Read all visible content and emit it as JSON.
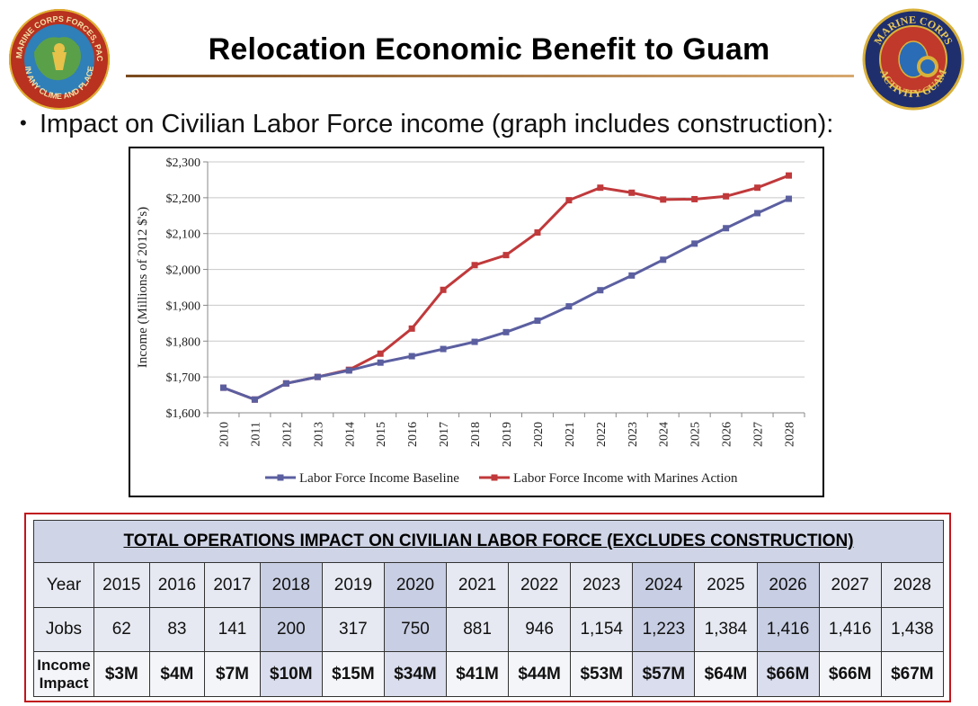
{
  "page": {
    "title": "Relocation Economic Benefit to Guam",
    "bullet": "Impact on Civilian Labor Force income (graph includes construction):"
  },
  "logos": {
    "left": {
      "icon": "usmc-forces-pacific-seal",
      "text_top": "U.S. MARINE CORPS FORCES, PACIFIC",
      "text_bottom": "IN ANY CLIME AND PLACE"
    },
    "right": {
      "icon": "marine-corps-activity-guam-seal",
      "text_top": "MARINE CORPS",
      "text_bottom": "ACTIVITY GUAM"
    }
  },
  "chart_data": {
    "type": "line",
    "title": "",
    "xlabel": "",
    "ylabel": "Income (Millions of  2012 $'s)",
    "x": [
      "2010",
      "2011",
      "2012",
      "2013",
      "2014",
      "2015",
      "2016",
      "2017",
      "2018",
      "2019",
      "2020",
      "2021",
      "2022",
      "2023",
      "2024",
      "2025",
      "2026",
      "2027",
      "2028"
    ],
    "ylim": [
      1600,
      2300
    ],
    "yticks": [
      1600,
      1700,
      1800,
      1900,
      2000,
      2100,
      2200,
      2300
    ],
    "ytick_labels": [
      "$1,600",
      "$1,700",
      "$1,800",
      "$1,900",
      "$2,000",
      "$2,100",
      "$2,200",
      "$2,300"
    ],
    "grid": "horizontal",
    "legend_position": "bottom",
    "series": [
      {
        "name": "Labor Force Income Baseline",
        "color": "#5b5fa0",
        "values": [
          1670,
          1637,
          1682,
          1700,
          1718,
          1740,
          1758,
          1778,
          1798,
          1825,
          1857,
          1897,
          1942,
          1983,
          2027,
          2072,
          2115,
          2157,
          2197
        ]
      },
      {
        "name": "Labor Force Income with Marines Action",
        "color": "#c0393b",
        "values": [
          1670,
          1637,
          1682,
          1700,
          1720,
          1765,
          1835,
          1943,
          2012,
          2040,
          2103,
          2193,
          2228,
          2214,
          2195,
          2196,
          2204,
          2228,
          2262
        ]
      }
    ]
  },
  "table": {
    "title": "TOTAL OPERATIONS IMPACT ON CIVILIAN LABOR FORCE (EXCLUDES CONSTRUCTION)",
    "row_labels": {
      "year": "Year",
      "jobs": "Jobs",
      "income_line1": "Income",
      "income_line2": "Impact"
    },
    "years": [
      "2015",
      "2016",
      "2017",
      "2018",
      "2019",
      "2020",
      "2021",
      "2022",
      "2023",
      "2024",
      "2025",
      "2026",
      "2027",
      "2028"
    ],
    "jobs": [
      "62",
      "83",
      "141",
      "200",
      "317",
      "750",
      "881",
      "946",
      "1,154",
      "1,223",
      "1,384",
      "1,416",
      "1,416",
      "1,438"
    ],
    "income": [
      "$3M",
      "$4M",
      "$7M",
      "$10M",
      "$15M",
      "$34M",
      "$41M",
      "$44M",
      "$53M",
      "$57M",
      "$64M",
      "$66M",
      "$66M",
      "$67M"
    ]
  },
  "colors": {
    "accent_border": "#c0161c",
    "header_fill": "#cfd5e6",
    "cell_fill": "#e6e9f1"
  }
}
